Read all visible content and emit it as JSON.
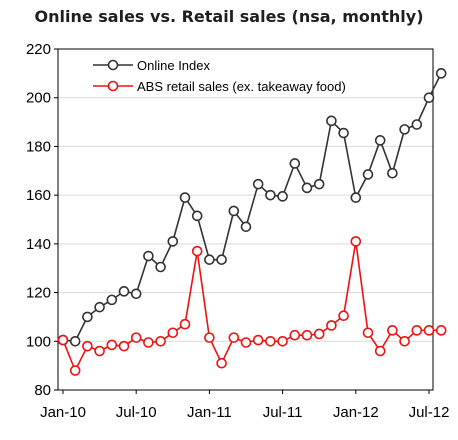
{
  "chart_data": {
    "type": "line",
    "title": "Online sales vs. Retail sales (nsa, monthly)",
    "xlabel": "",
    "ylabel": "",
    "ylim": [
      80,
      220
    ],
    "yticks": [
      80,
      100,
      120,
      140,
      160,
      180,
      200,
      220
    ],
    "x": [
      "Jan-10",
      "Feb-10",
      "Mar-10",
      "Apr-10",
      "May-10",
      "Jun-10",
      "Jul-10",
      "Aug-10",
      "Sep-10",
      "Oct-10",
      "Nov-10",
      "Dec-10",
      "Jan-11",
      "Feb-11",
      "Mar-11",
      "Apr-11",
      "May-11",
      "Jun-11",
      "Jul-11",
      "Aug-11",
      "Sep-11",
      "Oct-11",
      "Nov-11",
      "Dec-11",
      "Jan-12",
      "Feb-12",
      "Mar-12",
      "Apr-12",
      "May-12",
      "Jun-12",
      "Jul-12",
      "Aug-12"
    ],
    "xtick_labels": [
      {
        "index": 0,
        "label": "Jan-10"
      },
      {
        "index": 6,
        "label": "Jul-10"
      },
      {
        "index": 12,
        "label": "Jan-11"
      },
      {
        "index": 18,
        "label": "Jul-11"
      },
      {
        "index": 24,
        "label": "Jan-12"
      },
      {
        "index": 30,
        "label": "Jul-12"
      }
    ],
    "grid": "horizontal",
    "legend_position": "top-left",
    "series": [
      {
        "name": "Online Index",
        "color": "#333333",
        "values": [
          100.5,
          100,
          110,
          114,
          117,
          120.5,
          119.5,
          135,
          130.5,
          141,
          159,
          151.5,
          133.5,
          133.5,
          153.5,
          147,
          164.5,
          160,
          159.5,
          173,
          163,
          164.5,
          190.5,
          185.5,
          159,
          168.5,
          182.5,
          169,
          187,
          189,
          200,
          210
        ]
      },
      {
        "name": "ABS retail sales (ex. takeaway food)",
        "color": "#ee1111",
        "values": [
          100.5,
          88,
          98,
          96,
          98.5,
          98,
          101.5,
          99.5,
          100,
          103.5,
          107,
          137,
          101.5,
          91,
          101.5,
          99.5,
          100.5,
          100,
          100,
          102.5,
          102.5,
          103,
          106.5,
          110.5,
          141,
          103.5,
          96,
          104.5,
          100,
          104.5,
          104.5,
          104.5
        ]
      }
    ]
  }
}
